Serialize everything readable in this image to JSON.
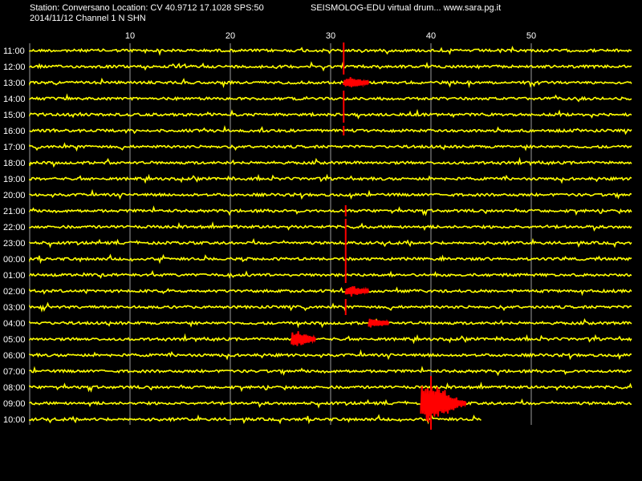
{
  "header": {
    "station_line": "Station: Conversano Location: CV 40.9712 17.1028 SPS:50",
    "brand_line": "SEISMOLOG-EDU virtual drum... www.sara.pg.it",
    "date_channel_line": "2014/11/12  Channel 1 N SHN"
  },
  "chart_data": {
    "type": "line",
    "title": "",
    "xlabel": "",
    "ylabel": "",
    "x_ticks": [
      10,
      20,
      30,
      40,
      50
    ],
    "xlim": [
      0,
      60
    ],
    "grid": true,
    "rows": [
      "11:00",
      "12:00",
      "13:00",
      "14:00",
      "15:00",
      "16:00",
      "17:00",
      "18:00",
      "19:00",
      "20:00",
      "21:00",
      "22:00",
      "23:00",
      "00:00",
      "01:00",
      "02:00",
      "03:00",
      "04:00",
      "05:00",
      "06:00",
      "07:00",
      "08:00",
      "09:00",
      "10:00"
    ],
    "last_row_end_minute": 45,
    "colors": {
      "background": "#000000",
      "trace": "#ffff00",
      "event": "#ff0000",
      "grid": "#9a9a9a",
      "text": "#ffffff"
    },
    "events": [
      {
        "row": 0,
        "start_min": 31.3,
        "end_min": 31.6,
        "amp": 1.0,
        "tail": 0
      },
      {
        "row": 1,
        "start_min": 31.3,
        "end_min": 31.6,
        "amp": 1.0,
        "tail": 0
      },
      {
        "row": 2,
        "start_min": 31.3,
        "end_min": 33.8,
        "amp": 0.55,
        "tail": 1
      },
      {
        "row": 3,
        "start_min": 31.3,
        "end_min": 31.6,
        "amp": 1.0,
        "tail": 0
      },
      {
        "row": 4,
        "start_min": 31.3,
        "end_min": 31.6,
        "amp": 1.0,
        "tail": 0
      },
      {
        "row": 5,
        "start_min": 31.3,
        "end_min": 31.6,
        "amp": 0.6,
        "tail": 0
      },
      {
        "row": 10,
        "start_min": 31.5,
        "end_min": 31.8,
        "amp": 0.7,
        "tail": 0
      },
      {
        "row": 11,
        "start_min": 31.5,
        "end_min": 31.8,
        "amp": 1.0,
        "tail": 0
      },
      {
        "row": 12,
        "start_min": 31.5,
        "end_min": 31.8,
        "amp": 1.0,
        "tail": 0
      },
      {
        "row": 13,
        "start_min": 31.5,
        "end_min": 31.8,
        "amp": 1.0,
        "tail": 0
      },
      {
        "row": 14,
        "start_min": 31.5,
        "end_min": 31.8,
        "amp": 1.0,
        "tail": 0
      },
      {
        "row": 15,
        "start_min": 31.5,
        "end_min": 33.8,
        "amp": 0.55,
        "tail": 1
      },
      {
        "row": 16,
        "start_min": 31.5,
        "end_min": 31.8,
        "amp": 1.0,
        "tail": 0
      },
      {
        "row": 17,
        "start_min": 33.8,
        "end_min": 35.8,
        "amp": 0.55,
        "tail": 1
      },
      {
        "row": 18,
        "start_min": 26.1,
        "end_min": 28.5,
        "amp": 0.9,
        "tail": 1
      },
      {
        "row": 21,
        "start_min": 40.0,
        "end_min": 40.4,
        "amp": 1.4,
        "tail": 0
      },
      {
        "row": 22,
        "start_min": 39.0,
        "end_min": 43.5,
        "amp": 2.4,
        "tail": 1
      },
      {
        "row": 23,
        "start_min": 40.0,
        "end_min": 40.5,
        "amp": 1.3,
        "tail": 0
      }
    ]
  }
}
